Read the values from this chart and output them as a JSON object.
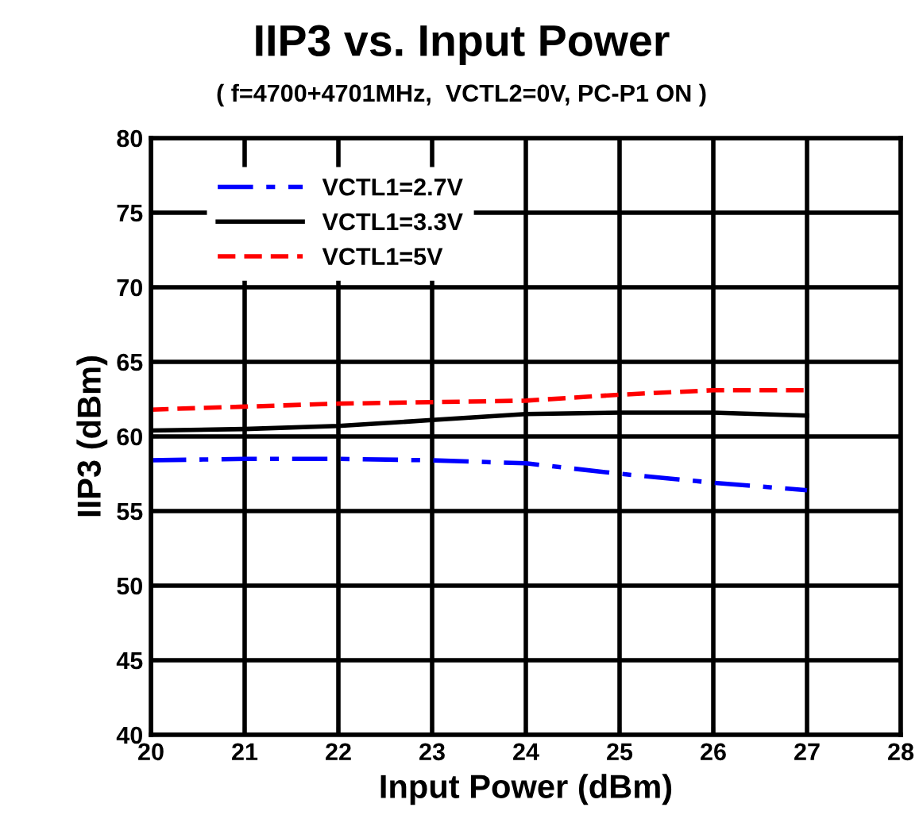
{
  "chart_data": {
    "type": "line",
    "title": "IIP3 vs. Input Power",
    "subtitle": "( f=4700+4701MHz,  VCTL2=0V, PC-P1 ON )",
    "xlabel": "Input Power (dBm)",
    "ylabel": "IIP3 (dBm)",
    "x": [
      20,
      21,
      22,
      23,
      24,
      25,
      26,
      27
    ],
    "series": [
      {
        "name": "VCTL1=2.7V",
        "color": "#0000ff",
        "line_style": "dashdot",
        "values": [
          58.4,
          58.5,
          58.5,
          58.4,
          58.2,
          57.5,
          56.9,
          56.4
        ]
      },
      {
        "name": "VCTL1=3.3V",
        "color": "#000000",
        "line_style": "solid",
        "values": [
          60.4,
          60.5,
          60.7,
          61.1,
          61.5,
          61.6,
          61.6,
          61.4
        ]
      },
      {
        "name": "VCTL1=5V",
        "color": "#ff0000",
        "line_style": "dashed",
        "values": [
          61.8,
          62.0,
          62.2,
          62.3,
          62.4,
          62.8,
          63.1,
          63.1
        ]
      }
    ],
    "xlim": [
      20,
      28
    ],
    "ylim": [
      40,
      80
    ],
    "xticks": [
      20,
      21,
      22,
      23,
      24,
      25,
      26,
      27,
      28
    ],
    "yticks": [
      40,
      45,
      50,
      55,
      60,
      65,
      70,
      75,
      80
    ],
    "grid": true,
    "legend": "top left",
    "marker": "none"
  }
}
